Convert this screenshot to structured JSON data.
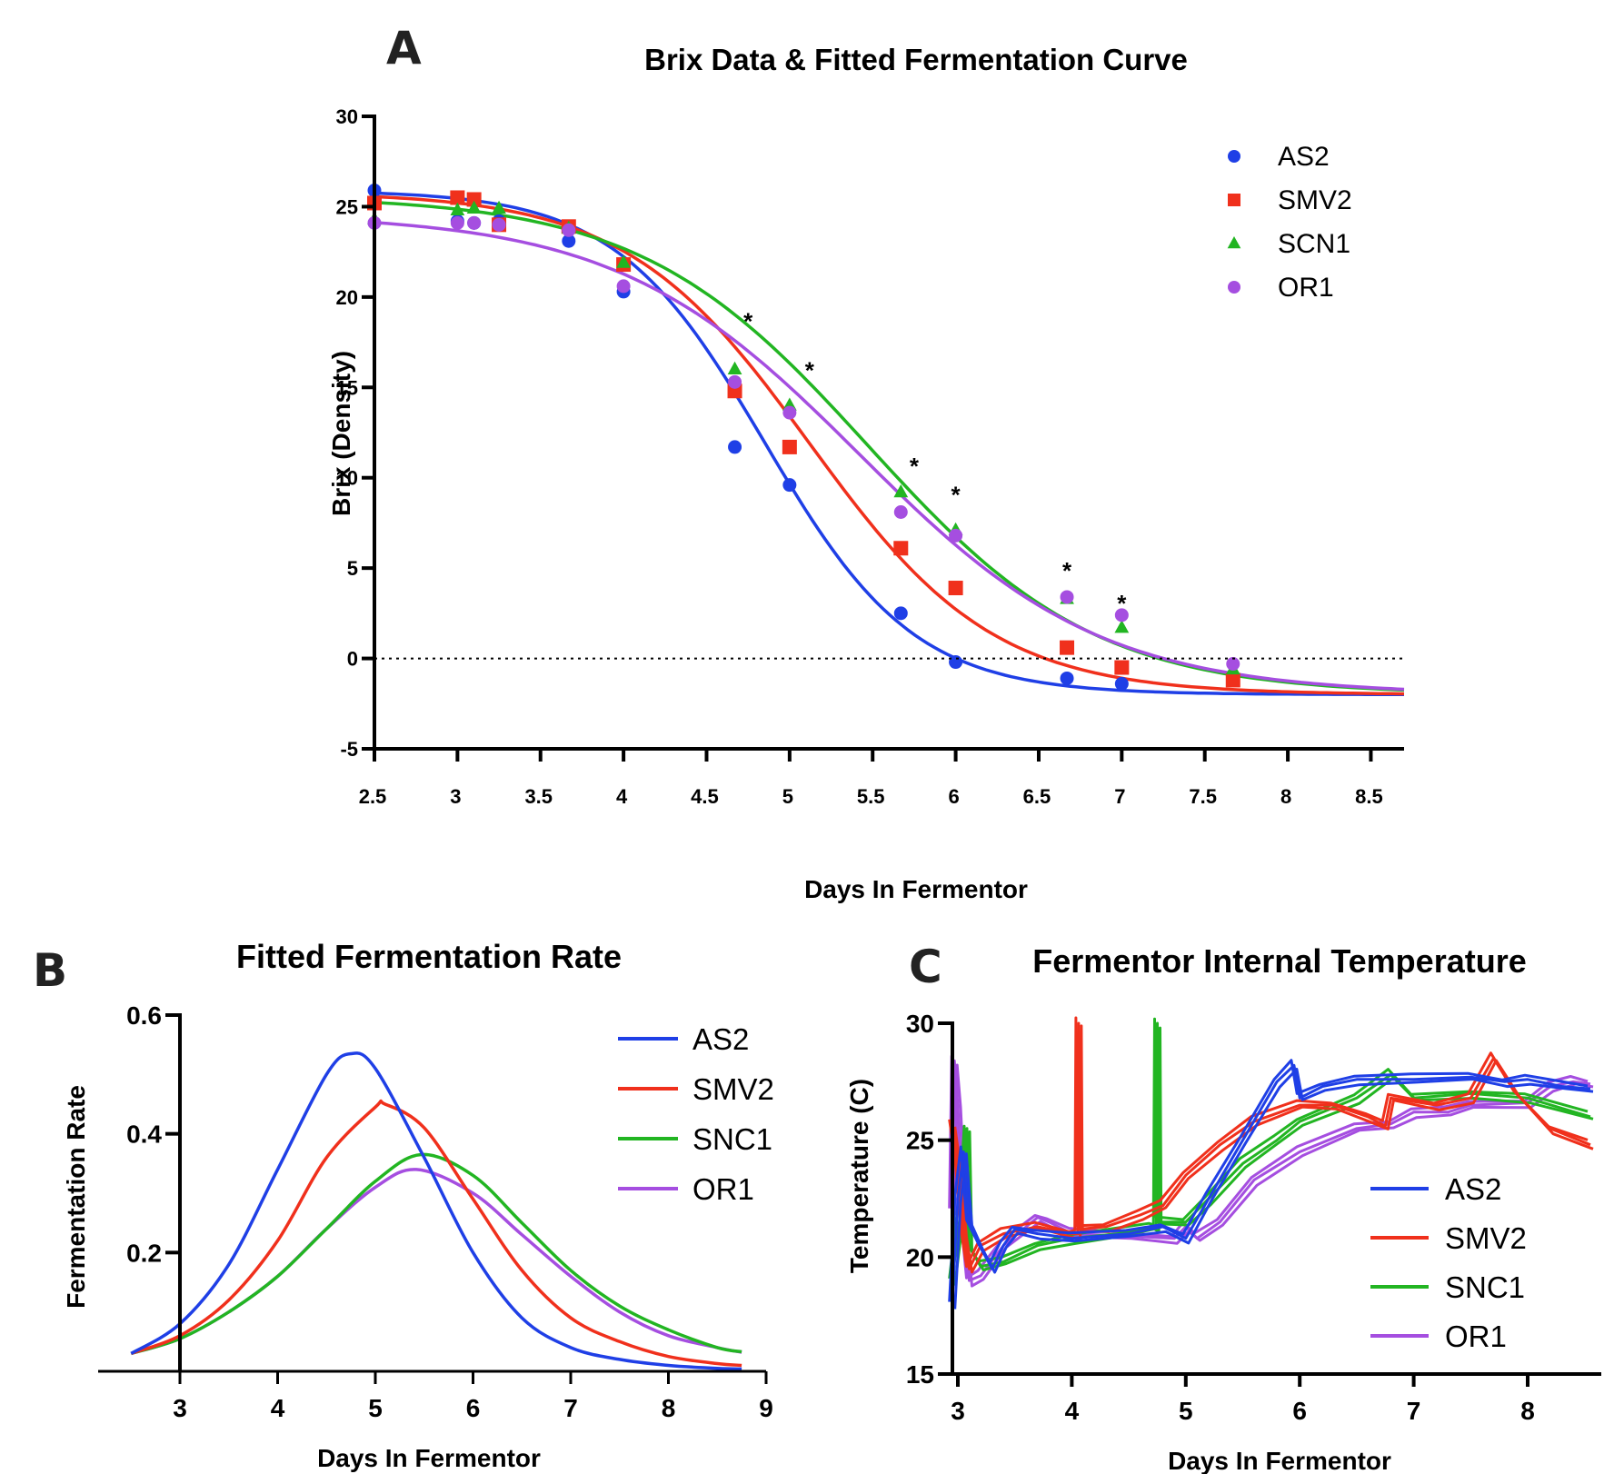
{
  "colors": {
    "AS2": "#1f3fe6",
    "SMV2": "#f0301c",
    "SCN1": "#22b522",
    "SNC1": "#22b522",
    "OR1": "#a54ee0"
  },
  "chart_data": [
    {
      "panel": "A",
      "type": "scatter",
      "title": "Brix Data & Fitted Fermentation Curve",
      "xlabel": "Days In Fermentor",
      "ylabel": "Brix (Density)",
      "xlim": [
        2.5,
        8.7
      ],
      "ylim": [
        -5,
        30
      ],
      "xticks": [
        "2.5",
        "3",
        "3.5",
        "4",
        "4.5",
        "5",
        "5.5",
        "6",
        "6.5",
        "7",
        "7.5",
        "8",
        "8.5"
      ],
      "yticks": [
        "30",
        "25",
        "20",
        "15",
        "10",
        "5",
        "0",
        "-5"
      ],
      "legend_position": "top-right",
      "reference_line": 0,
      "x": [
        2.5,
        3.0,
        3.1,
        3.25,
        3.67,
        4.0,
        4.67,
        5.0,
        5.67,
        6.0,
        6.67,
        7.0,
        7.67
      ],
      "significance_x": [
        4.75,
        5.12,
        5.75,
        6.0,
        6.67,
        7.0
      ],
      "significance_label": "*",
      "series": [
        {
          "name": "AS2",
          "marker": "circle",
          "values": [
            25.9,
            24.2,
            24.1,
            24.2,
            23.1,
            20.3,
            11.7,
            9.6,
            2.5,
            -0.2,
            -1.1,
            -1.4,
            -1.0
          ],
          "fit": {
            "lower": -2.0,
            "upper": 25.9,
            "midpoint": 4.85,
            "scale": 0.45
          }
        },
        {
          "name": "SMV2",
          "marker": "square",
          "values": [
            25.2,
            25.5,
            25.4,
            24.0,
            23.9,
            21.8,
            14.8,
            11.7,
            6.1,
            3.9,
            0.6,
            -0.5,
            -1.2
          ],
          "fit": {
            "lower": -2.0,
            "upper": 25.8,
            "midpoint": 5.12,
            "scale": 0.555
          }
        },
        {
          "name": "SCN1",
          "marker": "triangle",
          "values": [
            24.3,
            24.8,
            24.9,
            24.9,
            23.8,
            21.9,
            16.0,
            14.0,
            9.2,
            7.1,
            3.3,
            1.7,
            -0.6
          ],
          "fit": {
            "lower": -2.0,
            "upper": 25.6,
            "midpoint": 5.47,
            "scale": 0.688
          }
        },
        {
          "name": "OR1",
          "marker": "circle",
          "values": [
            24.1,
            24.1,
            24.1,
            24.0,
            23.7,
            20.6,
            15.3,
            13.6,
            8.1,
            6.8,
            3.4,
            2.4,
            -0.3
          ],
          "fit": {
            "lower": -2.0,
            "upper": 24.6,
            "midpoint": 5.42,
            "scale": 0.73
          }
        }
      ]
    },
    {
      "panel": "B",
      "type": "line",
      "title": "Fitted Fermentation Rate",
      "xlabel": "Days In Fermentor",
      "ylabel": "Fermentation Rate",
      "xlim": [
        2.2,
        9.0
      ],
      "ylim": [
        0.0,
        0.6
      ],
      "xticks": [
        "3",
        "4",
        "5",
        "6",
        "7",
        "8",
        "9"
      ],
      "yticks": [
        "0.6",
        "0.4",
        "0.2"
      ],
      "legend_position": "top-right",
      "series": [
        {
          "name": "AS2",
          "x": [
            2.5,
            3.0,
            3.5,
            4.0,
            4.5,
            4.75,
            5.0,
            5.5,
            6.0,
            6.5,
            7.0,
            7.5,
            8.0,
            8.5,
            8.75
          ],
          "values": [
            0.03,
            0.08,
            0.18,
            0.34,
            0.5,
            0.535,
            0.51,
            0.36,
            0.2,
            0.09,
            0.04,
            0.02,
            0.01,
            0.005,
            0.004
          ]
        },
        {
          "name": "SMV2",
          "x": [
            2.5,
            3.0,
            3.5,
            4.0,
            4.5,
            5.0,
            5.1,
            5.5,
            6.0,
            6.5,
            7.0,
            7.5,
            8.0,
            8.5,
            8.75
          ],
          "values": [
            0.03,
            0.06,
            0.12,
            0.22,
            0.36,
            0.445,
            0.45,
            0.41,
            0.29,
            0.17,
            0.09,
            0.05,
            0.025,
            0.013,
            0.01
          ]
        },
        {
          "name": "SNC1",
          "x": [
            2.5,
            3.0,
            3.5,
            4.0,
            4.5,
            5.0,
            5.47,
            6.0,
            6.5,
            7.0,
            7.5,
            8.0,
            8.5,
            8.75
          ],
          "values": [
            0.03,
            0.055,
            0.1,
            0.16,
            0.24,
            0.32,
            0.365,
            0.33,
            0.25,
            0.17,
            0.11,
            0.07,
            0.04,
            0.033
          ]
        },
        {
          "name": "OR1",
          "x": [
            2.5,
            3.0,
            3.5,
            4.0,
            4.5,
            5.0,
            5.42,
            6.0,
            6.5,
            7.0,
            7.5,
            8.0,
            8.5,
            8.75
          ],
          "values": [
            0.03,
            0.055,
            0.1,
            0.16,
            0.24,
            0.31,
            0.34,
            0.3,
            0.23,
            0.16,
            0.1,
            0.06,
            0.04,
            0.032
          ]
        }
      ]
    },
    {
      "panel": "C",
      "type": "line",
      "title": "Fermentor Internal Temperature",
      "xlabel": "Days In Fermentor",
      "ylabel": "Temperature (C)",
      "xlim": [
        2.95,
        9.0
      ],
      "ylim": [
        15,
        30
      ],
      "xticks": [
        "3",
        "4",
        "5",
        "6",
        "7",
        "8"
      ],
      "yticks": [
        "30",
        "25",
        "20",
        "15"
      ],
      "legend_position": "right",
      "series": [
        {
          "name": "AS2",
          "x": [
            2.95,
            3.0,
            3.05,
            3.1,
            3.2,
            3.3,
            3.4,
            3.5,
            3.7,
            4.0,
            4.5,
            4.8,
            5.0,
            5.2,
            5.5,
            5.8,
            5.95,
            6.0,
            6.2,
            6.5,
            7.0,
            7.5,
            7.8,
            8.0,
            8.3,
            8.55
          ],
          "values": [
            18.0,
            22.5,
            24.5,
            21.5,
            20.5,
            19.5,
            20.5,
            21.2,
            21.0,
            20.8,
            21.0,
            21.3,
            20.8,
            22.5,
            25.0,
            27.5,
            28.2,
            26.8,
            27.3,
            27.6,
            27.6,
            27.7,
            27.5,
            27.6,
            27.3,
            27.2
          ]
        },
        {
          "name": "SMV2",
          "x": [
            2.95,
            3.0,
            3.05,
            3.1,
            3.2,
            3.4,
            3.7,
            4.0,
            4.05,
            4.06,
            4.07,
            4.3,
            4.6,
            4.8,
            5.0,
            5.3,
            5.6,
            6.0,
            6.3,
            6.6,
            6.75,
            6.8,
            7.2,
            7.5,
            7.7,
            7.9,
            8.2,
            8.55
          ],
          "values": [
            25.8,
            24.0,
            21.0,
            19.5,
            20.5,
            21.0,
            21.3,
            21.0,
            21.0,
            30.0,
            21.2,
            21.3,
            21.8,
            22.2,
            23.5,
            24.8,
            25.8,
            26.5,
            26.5,
            26.0,
            25.6,
            26.8,
            26.5,
            26.8,
            28.5,
            27.0,
            25.5,
            24.8
          ]
        },
        {
          "name": "SNC1",
          "x": [
            2.95,
            3.0,
            3.05,
            3.08,
            3.1,
            3.2,
            3.4,
            3.7,
            4.0,
            4.4,
            4.7,
            4.74,
            4.75,
            4.76,
            5.0,
            5.2,
            5.5,
            5.8,
            6.0,
            6.5,
            6.8,
            7.0,
            7.5,
            8.0,
            8.55
          ],
          "values": [
            19.0,
            21.0,
            23.0,
            25.5,
            20.5,
            19.6,
            19.8,
            20.5,
            20.8,
            21.0,
            21.3,
            21.3,
            30.0,
            21.5,
            21.5,
            22.5,
            24.0,
            25.0,
            25.8,
            26.8,
            27.8,
            26.8,
            27.0,
            26.8,
            26.0
          ]
        },
        {
          "name": "OR1",
          "x": [
            2.95,
            2.97,
            3.0,
            3.05,
            3.1,
            3.2,
            3.4,
            3.7,
            3.8,
            4.0,
            4.5,
            4.9,
            5.0,
            5.1,
            5.3,
            5.6,
            6.0,
            6.5,
            6.8,
            7.0,
            7.3,
            7.5,
            8.0,
            8.2,
            8.4,
            8.55
          ],
          "values": [
            22.0,
            28.4,
            26.5,
            21.5,
            19.0,
            19.2,
            20.5,
            21.7,
            21.5,
            21.0,
            20.9,
            20.8,
            21.3,
            20.8,
            21.5,
            23.3,
            24.5,
            25.5,
            25.7,
            26.2,
            26.2,
            26.5,
            26.6,
            27.3,
            27.5,
            27.4
          ]
        }
      ]
    }
  ]
}
